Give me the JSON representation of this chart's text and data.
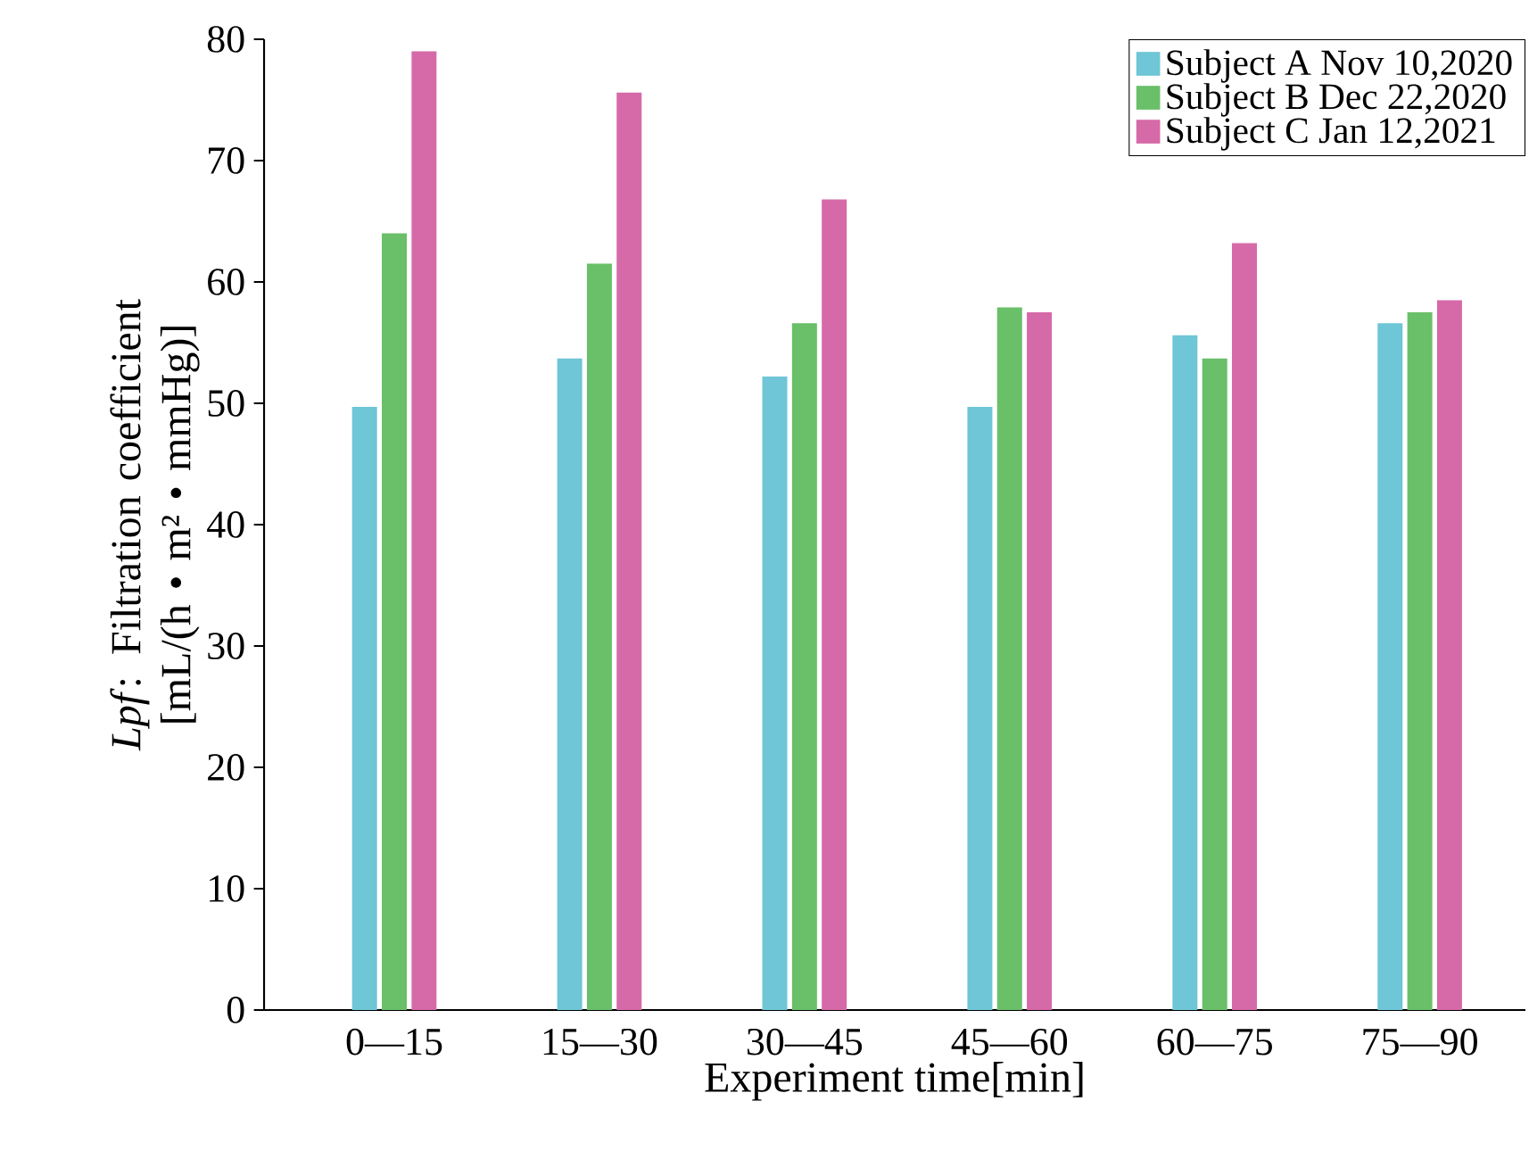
{
  "chart_data": {
    "type": "bar",
    "xlabel": "Experiment time[min]",
    "ylabel": "*Lpf*: Filtration coefficient [mL/(h • m² • mmHg)]",
    "categories": [
      "0—15",
      "15—30",
      "30—45",
      "45—60",
      "60—75",
      "75—90"
    ],
    "series": [
      {
        "name": "Subject A Nov 10,2020",
        "color": "#6ec6d6",
        "values": [
          49.7,
          53.7,
          52.2,
          49.7,
          55.6,
          56.6
        ]
      },
      {
        "name": "Subject B Dec 22,2020",
        "color": "#6abf69",
        "values": [
          64.0,
          61.5,
          56.6,
          57.9,
          53.7,
          57.5
        ]
      },
      {
        "name": "Subject C Jan 12,2021",
        "color": "#d66aa8",
        "values": [
          79.0,
          75.6,
          66.8,
          57.5,
          63.2,
          58.5
        ]
      }
    ],
    "ylim": [
      0,
      80
    ],
    "yticks": [
      0,
      10,
      20,
      30,
      40,
      50,
      60,
      70,
      80
    ],
    "legend": "top right"
  }
}
